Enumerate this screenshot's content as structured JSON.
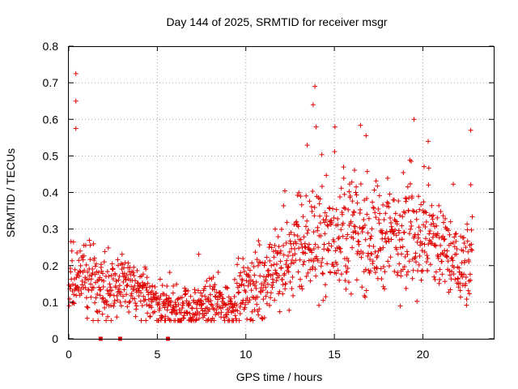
{
  "chart_data": {
    "type": "scatter",
    "title": "Day 144 of 2025, SRMTID for receiver msgr",
    "xlabel": "GPS time / hours",
    "ylabel": "SRMTID / TECUs",
    "xlim": [
      0,
      24
    ],
    "ylim": [
      0,
      0.8
    ],
    "x_ticks": [
      0,
      5,
      10,
      15,
      20
    ],
    "x_tick_labels": [
      "0",
      "5",
      "10",
      "15",
      "20"
    ],
    "y_ticks": [
      0,
      0.1,
      0.2,
      0.3,
      0.4,
      0.5,
      0.6,
      0.7,
      0.8
    ],
    "y_tick_labels": [
      "0",
      "0.1",
      "0.2",
      "0.3",
      "0.4",
      "0.5",
      "0.6",
      "0.7",
      "0.8"
    ],
    "grid": true,
    "marker": "plus",
    "color": "#e00000",
    "trend": [
      [
        0,
        0.14
      ],
      [
        1,
        0.17
      ],
      [
        2,
        0.15
      ],
      [
        3,
        0.15
      ],
      [
        4,
        0.12
      ],
      [
        5,
        0.1
      ],
      [
        6,
        0.08
      ],
      [
        7,
        0.08
      ],
      [
        8,
        0.1
      ],
      [
        9,
        0.09
      ],
      [
        10,
        0.13
      ],
      [
        11,
        0.15
      ],
      [
        12,
        0.2
      ],
      [
        13,
        0.25
      ],
      [
        14,
        0.27
      ],
      [
        15,
        0.28
      ],
      [
        16,
        0.3
      ],
      [
        17,
        0.28
      ],
      [
        18,
        0.27
      ],
      [
        19,
        0.32
      ],
      [
        20,
        0.28
      ],
      [
        21,
        0.25
      ],
      [
        22,
        0.2
      ],
      [
        22.8,
        0.2
      ]
    ],
    "notable_points": [
      {
        "x": 0.4,
        "y": 0.725
      },
      {
        "x": 0.4,
        "y": 0.65
      },
      {
        "x": 0.4,
        "y": 0.575
      },
      {
        "x": 13.9,
        "y": 0.69
      },
      {
        "x": 13.8,
        "y": 0.64
      },
      {
        "x": 22.7,
        "y": 0.57
      },
      {
        "x": 20.3,
        "y": 0.54
      }
    ],
    "zero_markers": [
      1.8,
      2.9,
      5.6
    ]
  }
}
